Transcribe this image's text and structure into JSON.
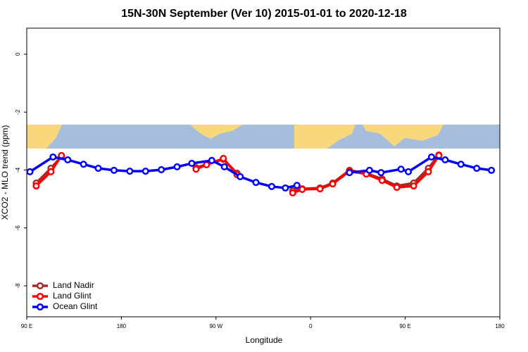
{
  "chart_data": {
    "type": "line",
    "title": "15N-30N September (Ver 10)   2015-01-01 to 2020-12-18",
    "x_label": "Longitude",
    "y_label": "XCO2 - MLO trend (ppm)",
    "xlim": [
      90,
      540
    ],
    "ylim": [
      -9.07,
      0.9
    ],
    "xticks": [
      {
        "value": 90,
        "label": "90 E"
      },
      {
        "value": 180,
        "label": "180"
      },
      {
        "value": 270,
        "label": "90 W"
      },
      {
        "value": 360,
        "label": "0"
      },
      {
        "value": 450,
        "label": "90 E"
      },
      {
        "value": 540,
        "label": "180"
      }
    ],
    "yticks": [
      0,
      -2,
      -4,
      -6,
      -8
    ],
    "legend": "bottom-left",
    "series": [
      {
        "name": "Land Nadir",
        "color": "#a52a2a",
        "x": [
          99,
          113,
          123,
          null,
          251,
          277,
          290,
          null,
          343,
          352,
          369,
          381,
          397,
          413,
          428,
          442,
          458,
          472,
          482
        ],
        "values": [
          -4.45,
          -3.94,
          -3.53,
          null,
          -3.92,
          -3.63,
          -4.11,
          null,
          -4.72,
          -4.65,
          -4.62,
          -4.45,
          -4.01,
          -4.11,
          -4.31,
          -4.55,
          -4.45,
          -3.94,
          -3.48
        ]
      },
      {
        "name": "Land Glint",
        "color": "#ff0000",
        "x": [
          99,
          113,
          123,
          null,
          251,
          261,
          277,
          290,
          null,
          343,
          352,
          369,
          381,
          397,
          413,
          428,
          442,
          458,
          472,
          482
        ],
        "values": [
          -4.55,
          -4.06,
          -3.5,
          null,
          -3.97,
          -3.82,
          -3.6,
          -4.16,
          null,
          -4.79,
          -4.67,
          -4.65,
          -4.48,
          -4.04,
          -4.14,
          -4.36,
          -4.6,
          -4.55,
          -4.06,
          -3.5
        ]
      },
      {
        "name": "Ocean Glint",
        "color": "#0000ff",
        "x": [
          93,
          115,
          129,
          144,
          158,
          173,
          188,
          203,
          218,
          233,
          247,
          266,
          278,
          293,
          308,
          323,
          336,
          347,
          null,
          397,
          416,
          427,
          446,
          453,
          475,
          488,
          503,
          518,
          532
        ],
        "values": [
          -4.06,
          -3.55,
          -3.65,
          -3.8,
          -3.94,
          -4.01,
          -4.04,
          -4.04,
          -3.99,
          -3.89,
          -3.77,
          -3.67,
          -3.89,
          -4.23,
          -4.43,
          -4.57,
          -4.62,
          -4.53,
          null,
          -4.09,
          -4.01,
          -4.09,
          -3.97,
          -4.06,
          -3.55,
          -3.65,
          -3.8,
          -3.94,
          -4.01
        ]
      }
    ]
  }
}
